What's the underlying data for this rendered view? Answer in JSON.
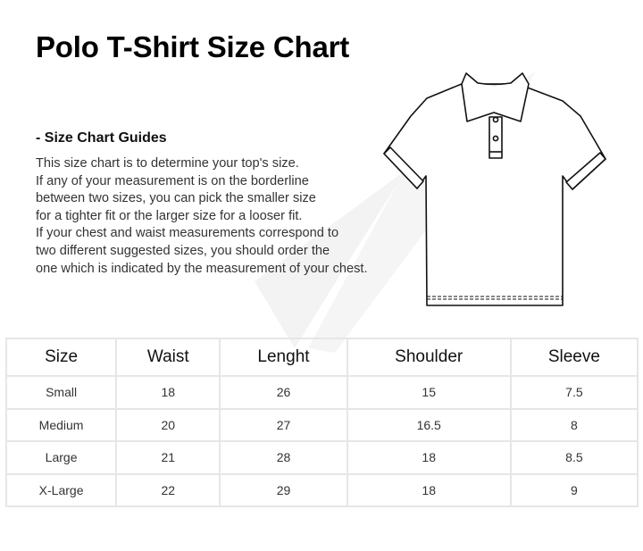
{
  "title": "Polo T-Shirt Size Chart",
  "guide": {
    "heading": "- Size Chart Guides",
    "lines": [
      "This size chart is to determine your top's size.",
      "If any of your measurement is on the borderline",
      "between two sizes, you can pick the smaller size",
      "for a tighter fit or the larger size for a looser fit.",
      "If your chest and waist measurements correspond to",
      "two different suggested sizes, you should order the",
      "one which is indicated by the measurement of your chest."
    ]
  },
  "table": {
    "headers": [
      "Size",
      "Waist",
      "Lenght",
      "Shoulder",
      "Sleeve"
    ],
    "rows": [
      [
        "Small",
        "18",
        "26",
        "15",
        "7.5"
      ],
      [
        "Medium",
        "20",
        "27",
        "16.5",
        "8"
      ],
      [
        "Large",
        "21",
        "28",
        "18",
        "8.5"
      ],
      [
        "X-Large",
        "22",
        "29",
        "18",
        "9"
      ]
    ]
  }
}
